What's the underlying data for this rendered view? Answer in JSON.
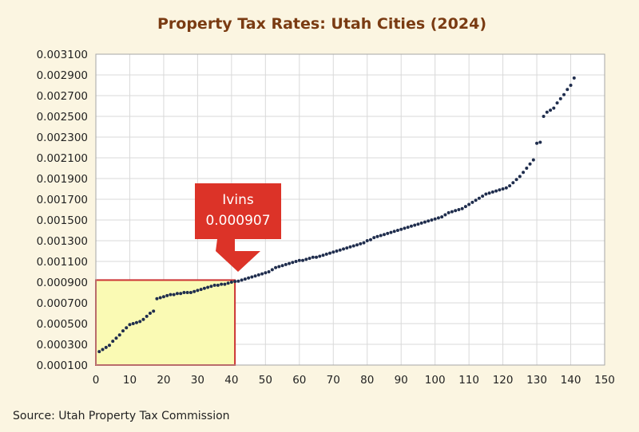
{
  "chart_data": {
    "type": "scatter",
    "title": "Property Tax Rates: Utah Cities (2024)",
    "xlabel": "",
    "ylabel": "",
    "source": "Source: Utah Property Tax Commission",
    "xlim": [
      0,
      150
    ],
    "ylim": [
      0.0001,
      0.0031
    ],
    "x_ticks": [
      "0",
      "10",
      "20",
      "30",
      "40",
      "50",
      "60",
      "70",
      "80",
      "90",
      "100",
      "110",
      "120",
      "130",
      "140",
      "150"
    ],
    "y_ticks": [
      "0.000100",
      "0.000300",
      "0.000500",
      "0.000700",
      "0.000900",
      "0.001100",
      "0.001300",
      "0.001500",
      "0.001700",
      "0.001900",
      "0.002100",
      "0.002300",
      "0.002500",
      "0.002700",
      "0.002900",
      "0.003100"
    ],
    "grid": true,
    "legend": "none",
    "series_color": "#1f2d4d",
    "callout": {
      "name": "Ivins",
      "value": "0.000907",
      "x": 41,
      "y": 0.000907,
      "color": "#dc3328"
    },
    "highlight_region": {
      "x": [
        0,
        41
      ],
      "y": [
        0.0001,
        0.00092
      ],
      "fill": "#fafab4",
      "stroke": "#cc3333"
    },
    "points": {
      "x": [
        1,
        2,
        3,
        4,
        5,
        6,
        7,
        8,
        9,
        10,
        11,
        12,
        13,
        14,
        15,
        16,
        17,
        18,
        19,
        20,
        21,
        22,
        23,
        24,
        25,
        26,
        27,
        28,
        29,
        30,
        31,
        32,
        33,
        34,
        35,
        36,
        37,
        38,
        39,
        40,
        41,
        42,
        43,
        44,
        45,
        46,
        47,
        48,
        49,
        50,
        51,
        52,
        53,
        54,
        55,
        56,
        57,
        58,
        59,
        60,
        61,
        62,
        63,
        64,
        65,
        66,
        67,
        68,
        69,
        70,
        71,
        72,
        73,
        74,
        75,
        76,
        77,
        78,
        79,
        80,
        81,
        82,
        83,
        84,
        85,
        86,
        87,
        88,
        89,
        90,
        91,
        92,
        93,
        94,
        95,
        96,
        97,
        98,
        99,
        100,
        101,
        102,
        103,
        104,
        105,
        106,
        107,
        108,
        109,
        110,
        111,
        112,
        113,
        114,
        115,
        116,
        117,
        118,
        119,
        120,
        121,
        122,
        123,
        124,
        125,
        126,
        127,
        128,
        129,
        130,
        131,
        132,
        133,
        134,
        135,
        136,
        137,
        138,
        139,
        140,
        141
      ],
      "y": [
        0.00023,
        0.00025,
        0.00027,
        0.00029,
        0.00033,
        0.00036,
        0.00039,
        0.00043,
        0.00046,
        0.00049,
        0.0005,
        0.00051,
        0.00052,
        0.00054,
        0.00057,
        0.0006,
        0.00062,
        0.00074,
        0.00075,
        0.00076,
        0.00077,
        0.00078,
        0.00078,
        0.00079,
        0.00079,
        0.0008,
        0.0008,
        0.0008,
        0.00081,
        0.00082,
        0.00083,
        0.00084,
        0.00085,
        0.00086,
        0.00087,
        0.00087,
        0.00088,
        0.00088,
        0.00089,
        0.0009,
        0.000907,
        0.00091,
        0.00092,
        0.00093,
        0.00094,
        0.00095,
        0.00096,
        0.00097,
        0.00098,
        0.00099,
        0.001,
        0.00102,
        0.00104,
        0.00105,
        0.00106,
        0.00107,
        0.00108,
        0.00109,
        0.0011,
        0.00111,
        0.00111,
        0.00112,
        0.00113,
        0.00114,
        0.00114,
        0.00115,
        0.00116,
        0.00117,
        0.00118,
        0.00119,
        0.0012,
        0.00121,
        0.00122,
        0.00123,
        0.00124,
        0.00125,
        0.00126,
        0.00127,
        0.00128,
        0.0013,
        0.00131,
        0.00133,
        0.00134,
        0.00135,
        0.00136,
        0.00137,
        0.00138,
        0.00139,
        0.0014,
        0.00141,
        0.00142,
        0.00143,
        0.00144,
        0.00145,
        0.00146,
        0.00147,
        0.00148,
        0.00149,
        0.0015,
        0.00151,
        0.00152,
        0.00153,
        0.00155,
        0.00157,
        0.00158,
        0.00159,
        0.0016,
        0.00161,
        0.00163,
        0.00165,
        0.00167,
        0.00169,
        0.00171,
        0.00173,
        0.00175,
        0.00176,
        0.00177,
        0.00178,
        0.00179,
        0.0018,
        0.00181,
        0.00183,
        0.00186,
        0.00189,
        0.00192,
        0.00196,
        0.002,
        0.00204,
        0.00208,
        0.00224,
        0.00225,
        0.0025,
        0.00254,
        0.00256,
        0.00258,
        0.00263,
        0.00267,
        0.00271,
        0.00276,
        0.0028,
        0.00287
      ]
    }
  }
}
